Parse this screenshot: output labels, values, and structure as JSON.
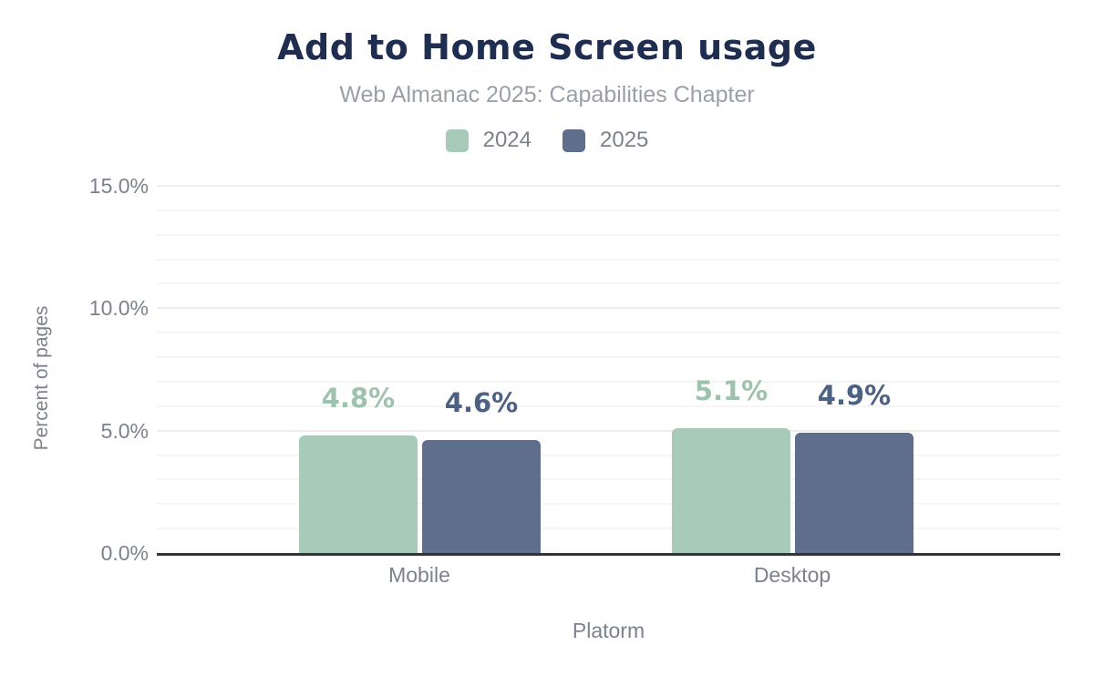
{
  "chart_data": {
    "type": "bar",
    "title": "Add to Home Screen usage",
    "subtitle": "Web Almanac 2025: Capabilities Chapter",
    "xlabel": "Platorm",
    "ylabel": "Percent of pages",
    "categories": [
      "Mobile",
      "Desktop"
    ],
    "series": [
      {
        "name": "2024",
        "values": [
          4.8,
          5.1
        ],
        "labels": [
          "4.8%",
          "5.1%"
        ],
        "color": "#a8cab8",
        "label_color": "#9dc3ae"
      },
      {
        "name": "2025",
        "values": [
          4.6,
          4.9
        ],
        "labels": [
          "4.6%",
          "4.9%"
        ],
        "color": "#5e6e8b",
        "label_color": "#4c6184"
      }
    ],
    "y_ticks": [
      {
        "value": 15,
        "label": "15.0%"
      },
      {
        "value": 10,
        "label": "10.0%"
      },
      {
        "value": 5,
        "label": "5.0%"
      },
      {
        "value": 0,
        "label": "0.0%"
      }
    ],
    "ylim": [
      0,
      15
    ],
    "y_major_step": 5,
    "y_minor_step": 1,
    "grid": "horizontal",
    "legend_position": "top"
  },
  "colors": {
    "title": "#1e2d50",
    "subtitle": "#9aa0a8",
    "axis_text": "#7b828e",
    "grid_minor": "#f5f5f5",
    "grid_major": "#ededed",
    "baseline": "#333437",
    "background": "#ffffff"
  }
}
